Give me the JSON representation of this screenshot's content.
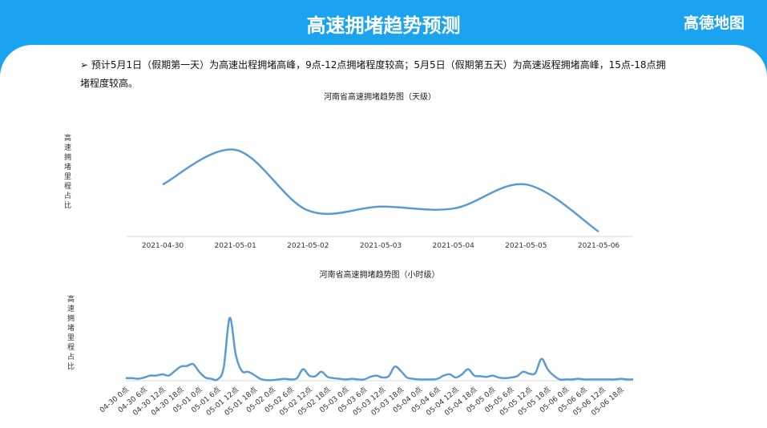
{
  "header": {
    "title": "高速拥堵趋势预测",
    "logo": "高德地图"
  },
  "note": "预计5月1日（假期第一天）为高速出程拥堵高峰，9点-12点拥堵程度较高；5月5日（假期第五天）为高速返程拥堵高峰，15点-18点拥堵程度较高。",
  "chart_data": [
    {
      "type": "line",
      "title": "河南省高速拥堵趋势图（天级）",
      "y_label": "高速拥堵里程占比",
      "categories": [
        "2021-04-30",
        "2021-05-01",
        "2021-05-02",
        "2021-05-03",
        "2021-05-04",
        "2021-05-05",
        "2021-05-06"
      ],
      "values": [
        54,
        90,
        27,
        31,
        29,
        54,
        5
      ],
      "color": "#5b9bd5",
      "ylim": [
        0,
        100
      ]
    },
    {
      "type": "line",
      "title": "河南省高速拥堵趋势图（小时级）",
      "y_label": "高速拥堵里程占比",
      "categories": [
        "04-30 0点",
        null,
        null,
        "04-30 6点",
        null,
        null,
        "04-30 12点",
        null,
        null,
        "04-30 18点",
        null,
        null,
        "05-01 0点",
        null,
        null,
        "05-01 6点",
        null,
        null,
        "05-01 12点",
        null,
        null,
        "05-01 18点",
        null,
        null,
        "05-02 0点",
        null,
        null,
        "05-02 6点",
        null,
        null,
        "05-02 12点",
        null,
        null,
        "05-02 18点",
        null,
        null,
        "05-03 0点",
        null,
        null,
        "05-03 6点",
        null,
        null,
        "05-03 12点",
        null,
        null,
        "05-03 18点",
        null,
        null,
        "05-04 0点",
        null,
        null,
        "05-04 6点",
        null,
        null,
        "05-04 12点",
        null,
        null,
        "05-04 18点",
        null,
        null,
        "05-05 0点",
        null,
        null,
        "05-05 6点",
        null,
        null,
        "05-05 12点",
        null,
        null,
        "05-05 18点",
        null,
        null,
        "05-06 0点",
        null,
        null,
        "05-06 6点",
        null,
        null,
        "05-06 12点",
        null,
        null,
        "05-06 18点",
        null,
        null
      ],
      "values": [
        4,
        4,
        3,
        5,
        8,
        8,
        10,
        8,
        15,
        22,
        23,
        26,
        14,
        5,
        3,
        2,
        20,
        98,
        40,
        15,
        14,
        9,
        3,
        1,
        1,
        2,
        3,
        2,
        4,
        18,
        8,
        7,
        14,
        6,
        4,
        3,
        2,
        3,
        2,
        2,
        6,
        8,
        5,
        7,
        22,
        15,
        5,
        3,
        2,
        2,
        2,
        3,
        8,
        10,
        5,
        10,
        18,
        8,
        7,
        6,
        8,
        5,
        4,
        5,
        7,
        14,
        11,
        12,
        34,
        18,
        8,
        2,
        2,
        2,
        3,
        2,
        2,
        2,
        2,
        2,
        2,
        3,
        2,
        2
      ],
      "color": "#5b9bd5",
      "ylim": [
        0,
        100
      ]
    }
  ]
}
